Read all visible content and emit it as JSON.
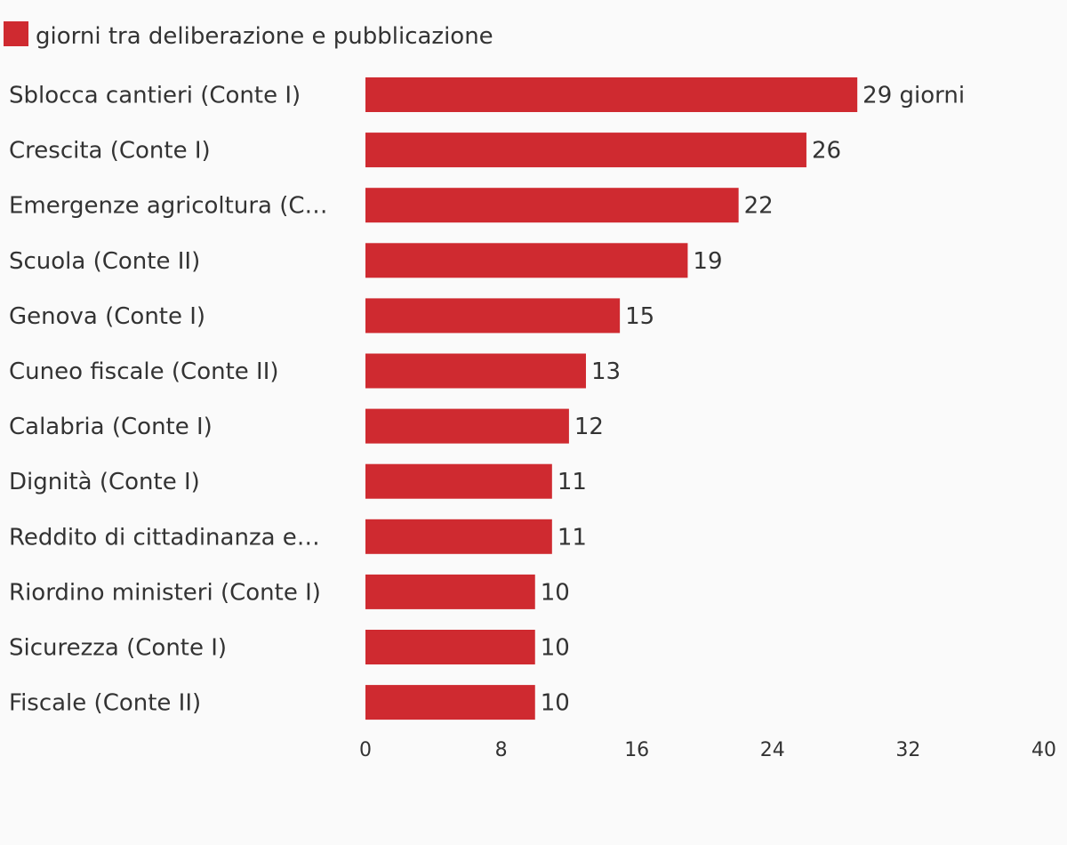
{
  "legend": {
    "label": "giorni tra deliberazione e pubblicazione",
    "color": "#cf2a30"
  },
  "chart_data": {
    "type": "bar",
    "orientation": "horizontal",
    "title": "",
    "xlabel": "",
    "ylabel": "",
    "xlim": [
      0,
      40
    ],
    "x_ticks": [
      "0",
      "8",
      "16",
      "24",
      "32",
      "40"
    ],
    "grid": false,
    "legend_position": "top-left",
    "categories": [
      "Sblocca cantieri (Conte I)",
      "Crescita (Conte I)",
      "Emergenze agricoltura (C…",
      "Scuola (Conte II)",
      "Genova (Conte I)",
      "Cuneo fiscale (Conte II)",
      "Calabria (Conte I)",
      "Dignità (Conte I)",
      "Reddito di cittadinanza e…",
      "Riordino ministeri (Conte I)",
      "Sicurezza (Conte I)",
      "Fiscale (Conte II)"
    ],
    "series": [
      {
        "name": "giorni tra deliberazione e pubblicazione",
        "values": [
          29,
          26,
          22,
          19,
          15,
          13,
          12,
          11,
          11,
          10,
          10,
          10
        ],
        "value_labels": [
          "29 giorni",
          "26",
          "22",
          "19",
          "15",
          "13",
          "12",
          "11",
          "11",
          "10",
          "10",
          "10"
        ],
        "color": "#cf2a30"
      }
    ]
  }
}
